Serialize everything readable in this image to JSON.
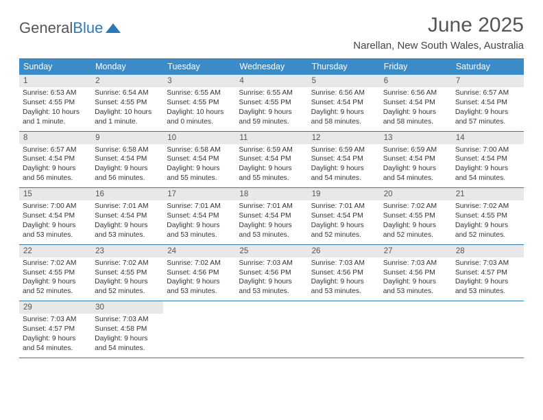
{
  "logo": {
    "part1": "General",
    "part2": "Blue"
  },
  "title": "June 2025",
  "location": "Narellan, New South Wales, Australia",
  "colors": {
    "header_bg": "#3b8bc9",
    "header_text": "#ffffff",
    "daynum_bg": "#e8e8e8",
    "border": "#2e77b8",
    "text": "#333333",
    "title": "#555555"
  },
  "day_headers": [
    "Sunday",
    "Monday",
    "Tuesday",
    "Wednesday",
    "Thursday",
    "Friday",
    "Saturday"
  ],
  "weeks": [
    [
      {
        "n": "1",
        "sr": "Sunrise: 6:53 AM",
        "ss": "Sunset: 4:55 PM",
        "d1": "Daylight: 10 hours",
        "d2": "and 1 minute."
      },
      {
        "n": "2",
        "sr": "Sunrise: 6:54 AM",
        "ss": "Sunset: 4:55 PM",
        "d1": "Daylight: 10 hours",
        "d2": "and 1 minute."
      },
      {
        "n": "3",
        "sr": "Sunrise: 6:55 AM",
        "ss": "Sunset: 4:55 PM",
        "d1": "Daylight: 10 hours",
        "d2": "and 0 minutes."
      },
      {
        "n": "4",
        "sr": "Sunrise: 6:55 AM",
        "ss": "Sunset: 4:55 PM",
        "d1": "Daylight: 9 hours",
        "d2": "and 59 minutes."
      },
      {
        "n": "5",
        "sr": "Sunrise: 6:56 AM",
        "ss": "Sunset: 4:54 PM",
        "d1": "Daylight: 9 hours",
        "d2": "and 58 minutes."
      },
      {
        "n": "6",
        "sr": "Sunrise: 6:56 AM",
        "ss": "Sunset: 4:54 PM",
        "d1": "Daylight: 9 hours",
        "d2": "and 58 minutes."
      },
      {
        "n": "7",
        "sr": "Sunrise: 6:57 AM",
        "ss": "Sunset: 4:54 PM",
        "d1": "Daylight: 9 hours",
        "d2": "and 57 minutes."
      }
    ],
    [
      {
        "n": "8",
        "sr": "Sunrise: 6:57 AM",
        "ss": "Sunset: 4:54 PM",
        "d1": "Daylight: 9 hours",
        "d2": "and 56 minutes."
      },
      {
        "n": "9",
        "sr": "Sunrise: 6:58 AM",
        "ss": "Sunset: 4:54 PM",
        "d1": "Daylight: 9 hours",
        "d2": "and 56 minutes."
      },
      {
        "n": "10",
        "sr": "Sunrise: 6:58 AM",
        "ss": "Sunset: 4:54 PM",
        "d1": "Daylight: 9 hours",
        "d2": "and 55 minutes."
      },
      {
        "n": "11",
        "sr": "Sunrise: 6:59 AM",
        "ss": "Sunset: 4:54 PM",
        "d1": "Daylight: 9 hours",
        "d2": "and 55 minutes."
      },
      {
        "n": "12",
        "sr": "Sunrise: 6:59 AM",
        "ss": "Sunset: 4:54 PM",
        "d1": "Daylight: 9 hours",
        "d2": "and 54 minutes."
      },
      {
        "n": "13",
        "sr": "Sunrise: 6:59 AM",
        "ss": "Sunset: 4:54 PM",
        "d1": "Daylight: 9 hours",
        "d2": "and 54 minutes."
      },
      {
        "n": "14",
        "sr": "Sunrise: 7:00 AM",
        "ss": "Sunset: 4:54 PM",
        "d1": "Daylight: 9 hours",
        "d2": "and 54 minutes."
      }
    ],
    [
      {
        "n": "15",
        "sr": "Sunrise: 7:00 AM",
        "ss": "Sunset: 4:54 PM",
        "d1": "Daylight: 9 hours",
        "d2": "and 53 minutes."
      },
      {
        "n": "16",
        "sr": "Sunrise: 7:01 AM",
        "ss": "Sunset: 4:54 PM",
        "d1": "Daylight: 9 hours",
        "d2": "and 53 minutes."
      },
      {
        "n": "17",
        "sr": "Sunrise: 7:01 AM",
        "ss": "Sunset: 4:54 PM",
        "d1": "Daylight: 9 hours",
        "d2": "and 53 minutes."
      },
      {
        "n": "18",
        "sr": "Sunrise: 7:01 AM",
        "ss": "Sunset: 4:54 PM",
        "d1": "Daylight: 9 hours",
        "d2": "and 53 minutes."
      },
      {
        "n": "19",
        "sr": "Sunrise: 7:01 AM",
        "ss": "Sunset: 4:54 PM",
        "d1": "Daylight: 9 hours",
        "d2": "and 52 minutes."
      },
      {
        "n": "20",
        "sr": "Sunrise: 7:02 AM",
        "ss": "Sunset: 4:55 PM",
        "d1": "Daylight: 9 hours",
        "d2": "and 52 minutes."
      },
      {
        "n": "21",
        "sr": "Sunrise: 7:02 AM",
        "ss": "Sunset: 4:55 PM",
        "d1": "Daylight: 9 hours",
        "d2": "and 52 minutes."
      }
    ],
    [
      {
        "n": "22",
        "sr": "Sunrise: 7:02 AM",
        "ss": "Sunset: 4:55 PM",
        "d1": "Daylight: 9 hours",
        "d2": "and 52 minutes."
      },
      {
        "n": "23",
        "sr": "Sunrise: 7:02 AM",
        "ss": "Sunset: 4:55 PM",
        "d1": "Daylight: 9 hours",
        "d2": "and 52 minutes."
      },
      {
        "n": "24",
        "sr": "Sunrise: 7:02 AM",
        "ss": "Sunset: 4:56 PM",
        "d1": "Daylight: 9 hours",
        "d2": "and 53 minutes."
      },
      {
        "n": "25",
        "sr": "Sunrise: 7:03 AM",
        "ss": "Sunset: 4:56 PM",
        "d1": "Daylight: 9 hours",
        "d2": "and 53 minutes."
      },
      {
        "n": "26",
        "sr": "Sunrise: 7:03 AM",
        "ss": "Sunset: 4:56 PM",
        "d1": "Daylight: 9 hours",
        "d2": "and 53 minutes."
      },
      {
        "n": "27",
        "sr": "Sunrise: 7:03 AM",
        "ss": "Sunset: 4:56 PM",
        "d1": "Daylight: 9 hours",
        "d2": "and 53 minutes."
      },
      {
        "n": "28",
        "sr": "Sunrise: 7:03 AM",
        "ss": "Sunset: 4:57 PM",
        "d1": "Daylight: 9 hours",
        "d2": "and 53 minutes."
      }
    ],
    [
      {
        "n": "29",
        "sr": "Sunrise: 7:03 AM",
        "ss": "Sunset: 4:57 PM",
        "d1": "Daylight: 9 hours",
        "d2": "and 54 minutes."
      },
      {
        "n": "30",
        "sr": "Sunrise: 7:03 AM",
        "ss": "Sunset: 4:58 PM",
        "d1": "Daylight: 9 hours",
        "d2": "and 54 minutes."
      },
      null,
      null,
      null,
      null,
      null
    ]
  ]
}
